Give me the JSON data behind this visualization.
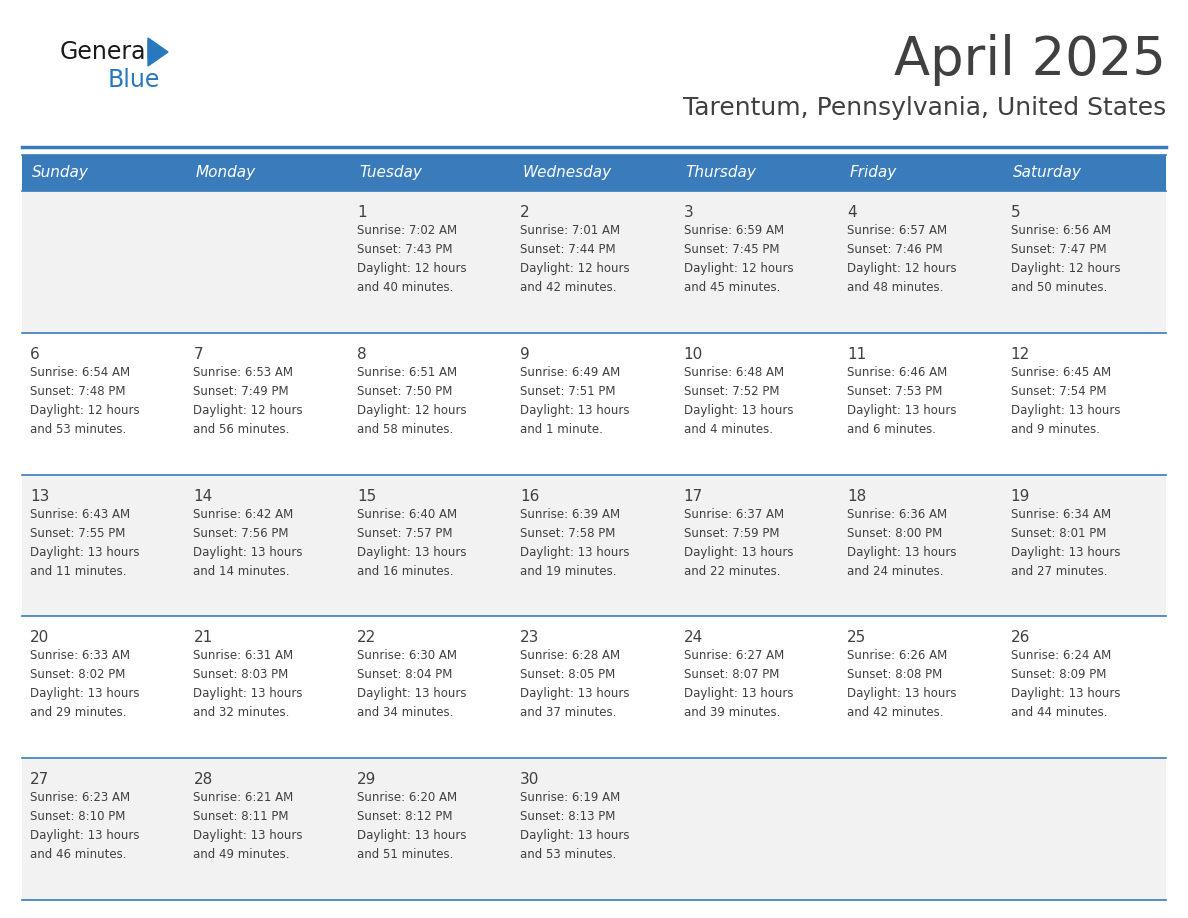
{
  "title": "April 2025",
  "subtitle": "Tarentum, Pennsylvania, United States",
  "header_color": "#3A7BBB",
  "header_text_color": "#FFFFFF",
  "day_names": [
    "Sunday",
    "Monday",
    "Tuesday",
    "Wednesday",
    "Thursday",
    "Friday",
    "Saturday"
  ],
  "bg_color": "#FFFFFF",
  "cell_bg_even": "#F2F2F2",
  "cell_bg_odd": "#FFFFFF",
  "border_color": "#3A7BBB",
  "text_color": "#404040",
  "logo_general_color": "#1a1a1a",
  "logo_blue_color": "#2878BE",
  "weeks": [
    [
      {
        "day": null,
        "info": null
      },
      {
        "day": null,
        "info": null
      },
      {
        "day": 1,
        "info": "Sunrise: 7:02 AM\nSunset: 7:43 PM\nDaylight: 12 hours\nand 40 minutes."
      },
      {
        "day": 2,
        "info": "Sunrise: 7:01 AM\nSunset: 7:44 PM\nDaylight: 12 hours\nand 42 minutes."
      },
      {
        "day": 3,
        "info": "Sunrise: 6:59 AM\nSunset: 7:45 PM\nDaylight: 12 hours\nand 45 minutes."
      },
      {
        "day": 4,
        "info": "Sunrise: 6:57 AM\nSunset: 7:46 PM\nDaylight: 12 hours\nand 48 minutes."
      },
      {
        "day": 5,
        "info": "Sunrise: 6:56 AM\nSunset: 7:47 PM\nDaylight: 12 hours\nand 50 minutes."
      }
    ],
    [
      {
        "day": 6,
        "info": "Sunrise: 6:54 AM\nSunset: 7:48 PM\nDaylight: 12 hours\nand 53 minutes."
      },
      {
        "day": 7,
        "info": "Sunrise: 6:53 AM\nSunset: 7:49 PM\nDaylight: 12 hours\nand 56 minutes."
      },
      {
        "day": 8,
        "info": "Sunrise: 6:51 AM\nSunset: 7:50 PM\nDaylight: 12 hours\nand 58 minutes."
      },
      {
        "day": 9,
        "info": "Sunrise: 6:49 AM\nSunset: 7:51 PM\nDaylight: 13 hours\nand 1 minute."
      },
      {
        "day": 10,
        "info": "Sunrise: 6:48 AM\nSunset: 7:52 PM\nDaylight: 13 hours\nand 4 minutes."
      },
      {
        "day": 11,
        "info": "Sunrise: 6:46 AM\nSunset: 7:53 PM\nDaylight: 13 hours\nand 6 minutes."
      },
      {
        "day": 12,
        "info": "Sunrise: 6:45 AM\nSunset: 7:54 PM\nDaylight: 13 hours\nand 9 minutes."
      }
    ],
    [
      {
        "day": 13,
        "info": "Sunrise: 6:43 AM\nSunset: 7:55 PM\nDaylight: 13 hours\nand 11 minutes."
      },
      {
        "day": 14,
        "info": "Sunrise: 6:42 AM\nSunset: 7:56 PM\nDaylight: 13 hours\nand 14 minutes."
      },
      {
        "day": 15,
        "info": "Sunrise: 6:40 AM\nSunset: 7:57 PM\nDaylight: 13 hours\nand 16 minutes."
      },
      {
        "day": 16,
        "info": "Sunrise: 6:39 AM\nSunset: 7:58 PM\nDaylight: 13 hours\nand 19 minutes."
      },
      {
        "day": 17,
        "info": "Sunrise: 6:37 AM\nSunset: 7:59 PM\nDaylight: 13 hours\nand 22 minutes."
      },
      {
        "day": 18,
        "info": "Sunrise: 6:36 AM\nSunset: 8:00 PM\nDaylight: 13 hours\nand 24 minutes."
      },
      {
        "day": 19,
        "info": "Sunrise: 6:34 AM\nSunset: 8:01 PM\nDaylight: 13 hours\nand 27 minutes."
      }
    ],
    [
      {
        "day": 20,
        "info": "Sunrise: 6:33 AM\nSunset: 8:02 PM\nDaylight: 13 hours\nand 29 minutes."
      },
      {
        "day": 21,
        "info": "Sunrise: 6:31 AM\nSunset: 8:03 PM\nDaylight: 13 hours\nand 32 minutes."
      },
      {
        "day": 22,
        "info": "Sunrise: 6:30 AM\nSunset: 8:04 PM\nDaylight: 13 hours\nand 34 minutes."
      },
      {
        "day": 23,
        "info": "Sunrise: 6:28 AM\nSunset: 8:05 PM\nDaylight: 13 hours\nand 37 minutes."
      },
      {
        "day": 24,
        "info": "Sunrise: 6:27 AM\nSunset: 8:07 PM\nDaylight: 13 hours\nand 39 minutes."
      },
      {
        "day": 25,
        "info": "Sunrise: 6:26 AM\nSunset: 8:08 PM\nDaylight: 13 hours\nand 42 minutes."
      },
      {
        "day": 26,
        "info": "Sunrise: 6:24 AM\nSunset: 8:09 PM\nDaylight: 13 hours\nand 44 minutes."
      }
    ],
    [
      {
        "day": 27,
        "info": "Sunrise: 6:23 AM\nSunset: 8:10 PM\nDaylight: 13 hours\nand 46 minutes."
      },
      {
        "day": 28,
        "info": "Sunrise: 6:21 AM\nSunset: 8:11 PM\nDaylight: 13 hours\nand 49 minutes."
      },
      {
        "day": 29,
        "info": "Sunrise: 6:20 AM\nSunset: 8:12 PM\nDaylight: 13 hours\nand 51 minutes."
      },
      {
        "day": 30,
        "info": "Sunrise: 6:19 AM\nSunset: 8:13 PM\nDaylight: 13 hours\nand 53 minutes."
      },
      {
        "day": null,
        "info": null
      },
      {
        "day": null,
        "info": null
      },
      {
        "day": null,
        "info": null
      }
    ]
  ]
}
